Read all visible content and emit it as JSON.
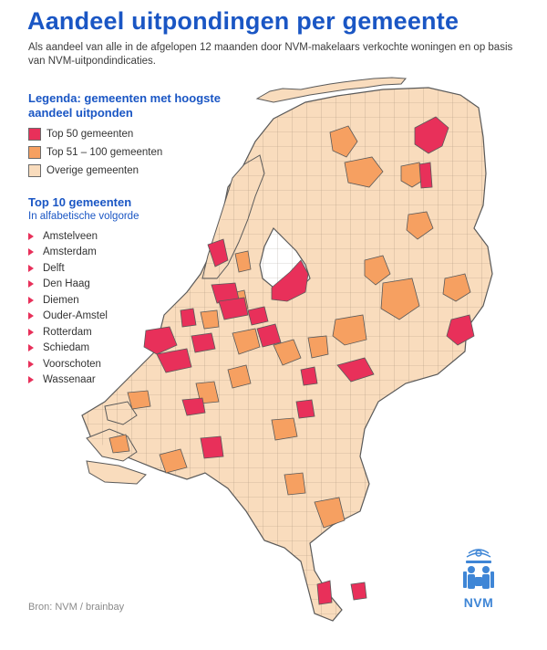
{
  "header": {
    "title": "Aandeel uitpondingen per gemeente",
    "subtitle": "Als aandeel van alle in de afgelopen 12 maanden door NVM-makelaars verkochte woningen en op basis van NVM-uitpondindicaties."
  },
  "legend": {
    "title": "Legenda: gemeenten met hoogste aandeel uitponden",
    "items": [
      {
        "label": "Top 50 gemeenten",
        "color": "#e8305a"
      },
      {
        "label": "Top 51 – 100 gemeenten",
        "color": "#f6a061"
      },
      {
        "label": "Overige gemeenten",
        "color": "#f9dcbd"
      }
    ]
  },
  "top10": {
    "title": "Top 10 gemeenten",
    "subtitle": "In alfabetische volgorde",
    "items": [
      "Amstelveen",
      "Amsterdam",
      "Delft",
      "Den Haag",
      "Diemen",
      "Ouder-Amstel",
      "Rotterdam",
      "Schiedam",
      "Voorschoten",
      "Wassenaar"
    ]
  },
  "source": "Bron: NVM / brainbay",
  "logo": {
    "text": "NVM",
    "icon": "nvm-logo-icon"
  },
  "colors": {
    "accent": "#1a56c4",
    "top50": "#e8305a",
    "top100": "#f6a061",
    "other": "#f9dcbd",
    "border": "#5a5a5a",
    "logo": "#3f86d6"
  }
}
